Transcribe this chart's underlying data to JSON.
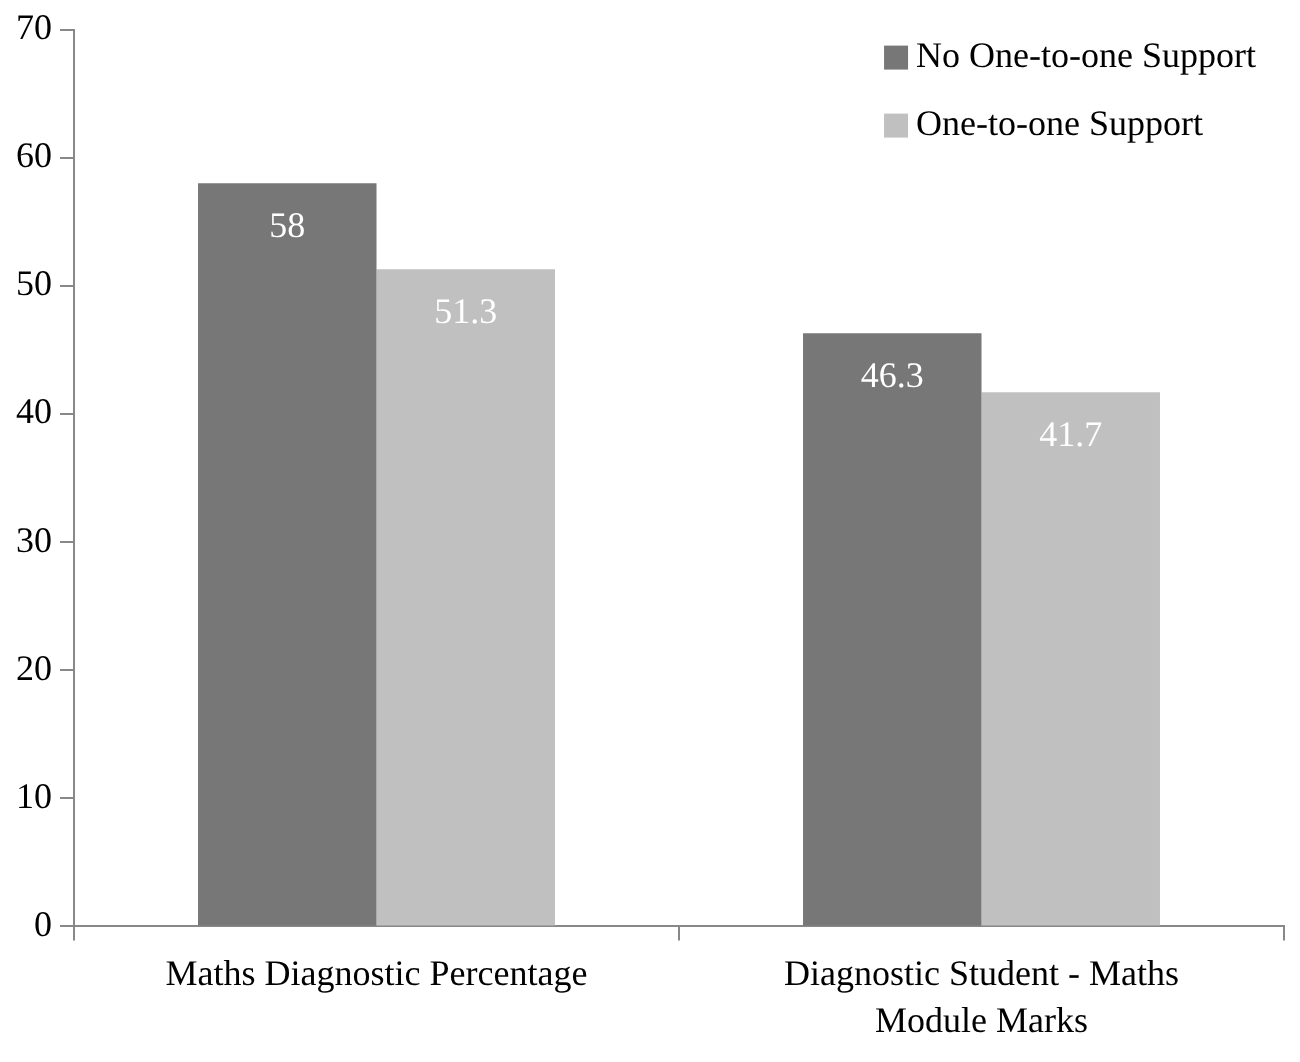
{
  "chart_data": {
    "type": "bar",
    "categories": [
      "Maths Diagnostic Percentage",
      "Diagnostic Student - Maths Module Marks"
    ],
    "series": [
      {
        "name": "No One-to-one Support",
        "color": "#777777",
        "values": [
          58,
          46.3
        ]
      },
      {
        "name": "One-to-one Support",
        "color": "#c0c0c0",
        "values": [
          51.3,
          41.7
        ]
      }
    ],
    "ylim": [
      0,
      70
    ],
    "yticks": [
      0,
      10,
      20,
      30,
      40,
      50,
      60,
      70
    ],
    "legend": "top right",
    "data_labels": true
  }
}
